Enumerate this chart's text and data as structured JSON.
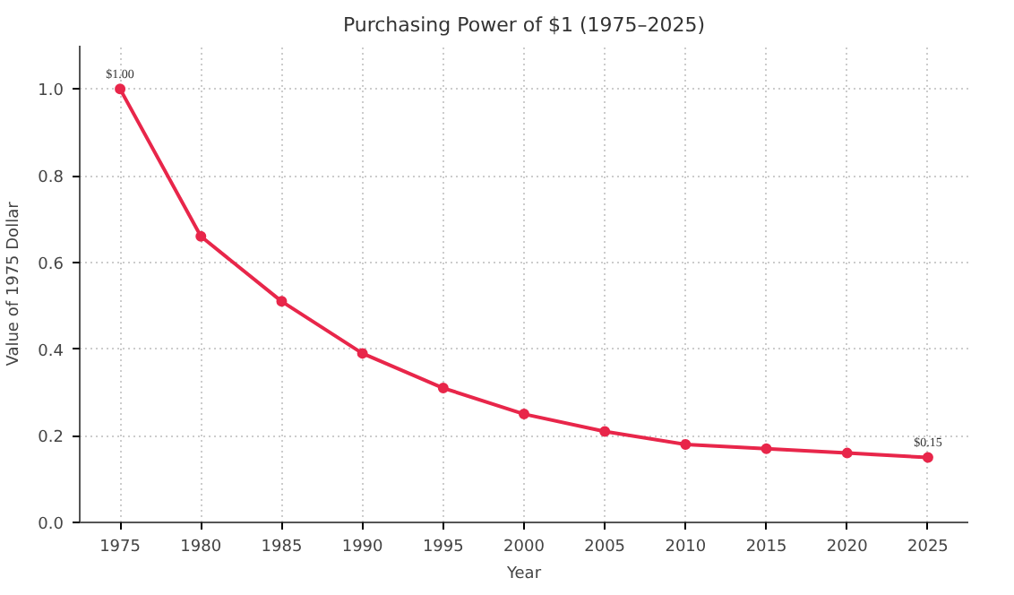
{
  "chart_data": {
    "type": "line",
    "title": "Purchasing Power of $1 (1975–2025)",
    "xlabel": "Year",
    "ylabel": "Value of 1975 Dollar",
    "x": [
      1975,
      1980,
      1985,
      1990,
      1995,
      2000,
      2005,
      2010,
      2015,
      2020,
      2025
    ],
    "series": [
      {
        "color": "#e8264a",
        "values": [
          1.0,
          0.66,
          0.51,
          0.39,
          0.31,
          0.25,
          0.21,
          0.18,
          0.17,
          0.16,
          0.15
        ]
      }
    ],
    "xlim": [
      1972.5,
      2027.5
    ],
    "xticks": [
      1975,
      1980,
      1985,
      1990,
      1995,
      2000,
      2005,
      2010,
      2015,
      2020,
      2025
    ],
    "ylim": [
      0,
      1.1
    ],
    "yticks": [
      {
        "value": 0,
        "label": "0.0"
      },
      0.2,
      0.4,
      0.6,
      0.8,
      {
        "value": 1,
        "label": "1.0"
      }
    ],
    "annotations": [
      {
        "text": "$1.00",
        "x": 1975,
        "y": 1.0
      },
      {
        "text": "$0.15",
        "x": 2025,
        "y": 0.15
      }
    ],
    "grid": true,
    "marker": "circle",
    "line_style": "solid"
  }
}
